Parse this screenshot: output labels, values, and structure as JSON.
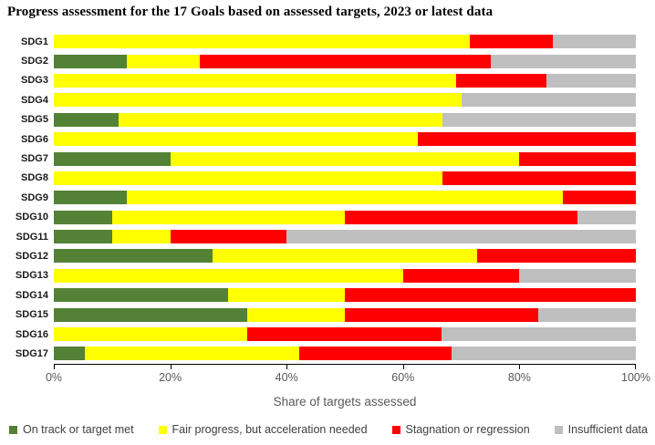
{
  "chart_data": {
    "type": "bar",
    "orientation": "horizontal-stacked",
    "title": "Progress assessment for the 17 Goals based on assessed targets, 2023 or latest data",
    "xlabel": "Share of targets assessed",
    "x_ticks": [
      "0%",
      "20%",
      "40%",
      "60%",
      "80%",
      "100%"
    ],
    "xlim": [
      0,
      100
    ],
    "grid": false,
    "legend_position": "bottom",
    "categories": [
      "SDG1",
      "SDG2",
      "SDG3",
      "SDG4",
      "SDG5",
      "SDG6",
      "SDG7",
      "SDG8",
      "SDG9",
      "SDG10",
      "SDG11",
      "SDG12",
      "SDG13",
      "SDG14",
      "SDG15",
      "SDG16",
      "SDG17"
    ],
    "series": [
      {
        "name": "On track or target met",
        "color": "#538135",
        "values": [
          0,
          12.5,
          0,
          0,
          11.1,
          0,
          20,
          0,
          12.5,
          10,
          10,
          27.3,
          0,
          30,
          33.3,
          0,
          5.3
        ]
      },
      {
        "name": "Fair progress, but acceleration needed",
        "color": "#FFFF00",
        "values": [
          71.4,
          12.5,
          69.2,
          70,
          55.6,
          62.5,
          60,
          66.7,
          75,
          40,
          10,
          45.4,
          60,
          20,
          16.7,
          33.3,
          36.8
        ]
      },
      {
        "name": "Stagnation or regression",
        "color": "#FF0000",
        "values": [
          14.3,
          50,
          15.4,
          0,
          0,
          37.5,
          20,
          33.3,
          12.5,
          40,
          20,
          27.3,
          20,
          50,
          33.3,
          33.3,
          26.3
        ]
      },
      {
        "name": "Insufficient data",
        "color": "#BFBFBF",
        "values": [
          14.3,
          25,
          15.4,
          30,
          33.3,
          0,
          0,
          0,
          0,
          10,
          60,
          0,
          20,
          0,
          16.7,
          33.4,
          31.6
        ]
      }
    ]
  },
  "colors": {
    "title_text": "#000000",
    "category_label": "#1a1a1a",
    "tick_label": "#595959",
    "axis_line": "#000000",
    "legend_text": "#404040",
    "background": "#ffffff"
  }
}
